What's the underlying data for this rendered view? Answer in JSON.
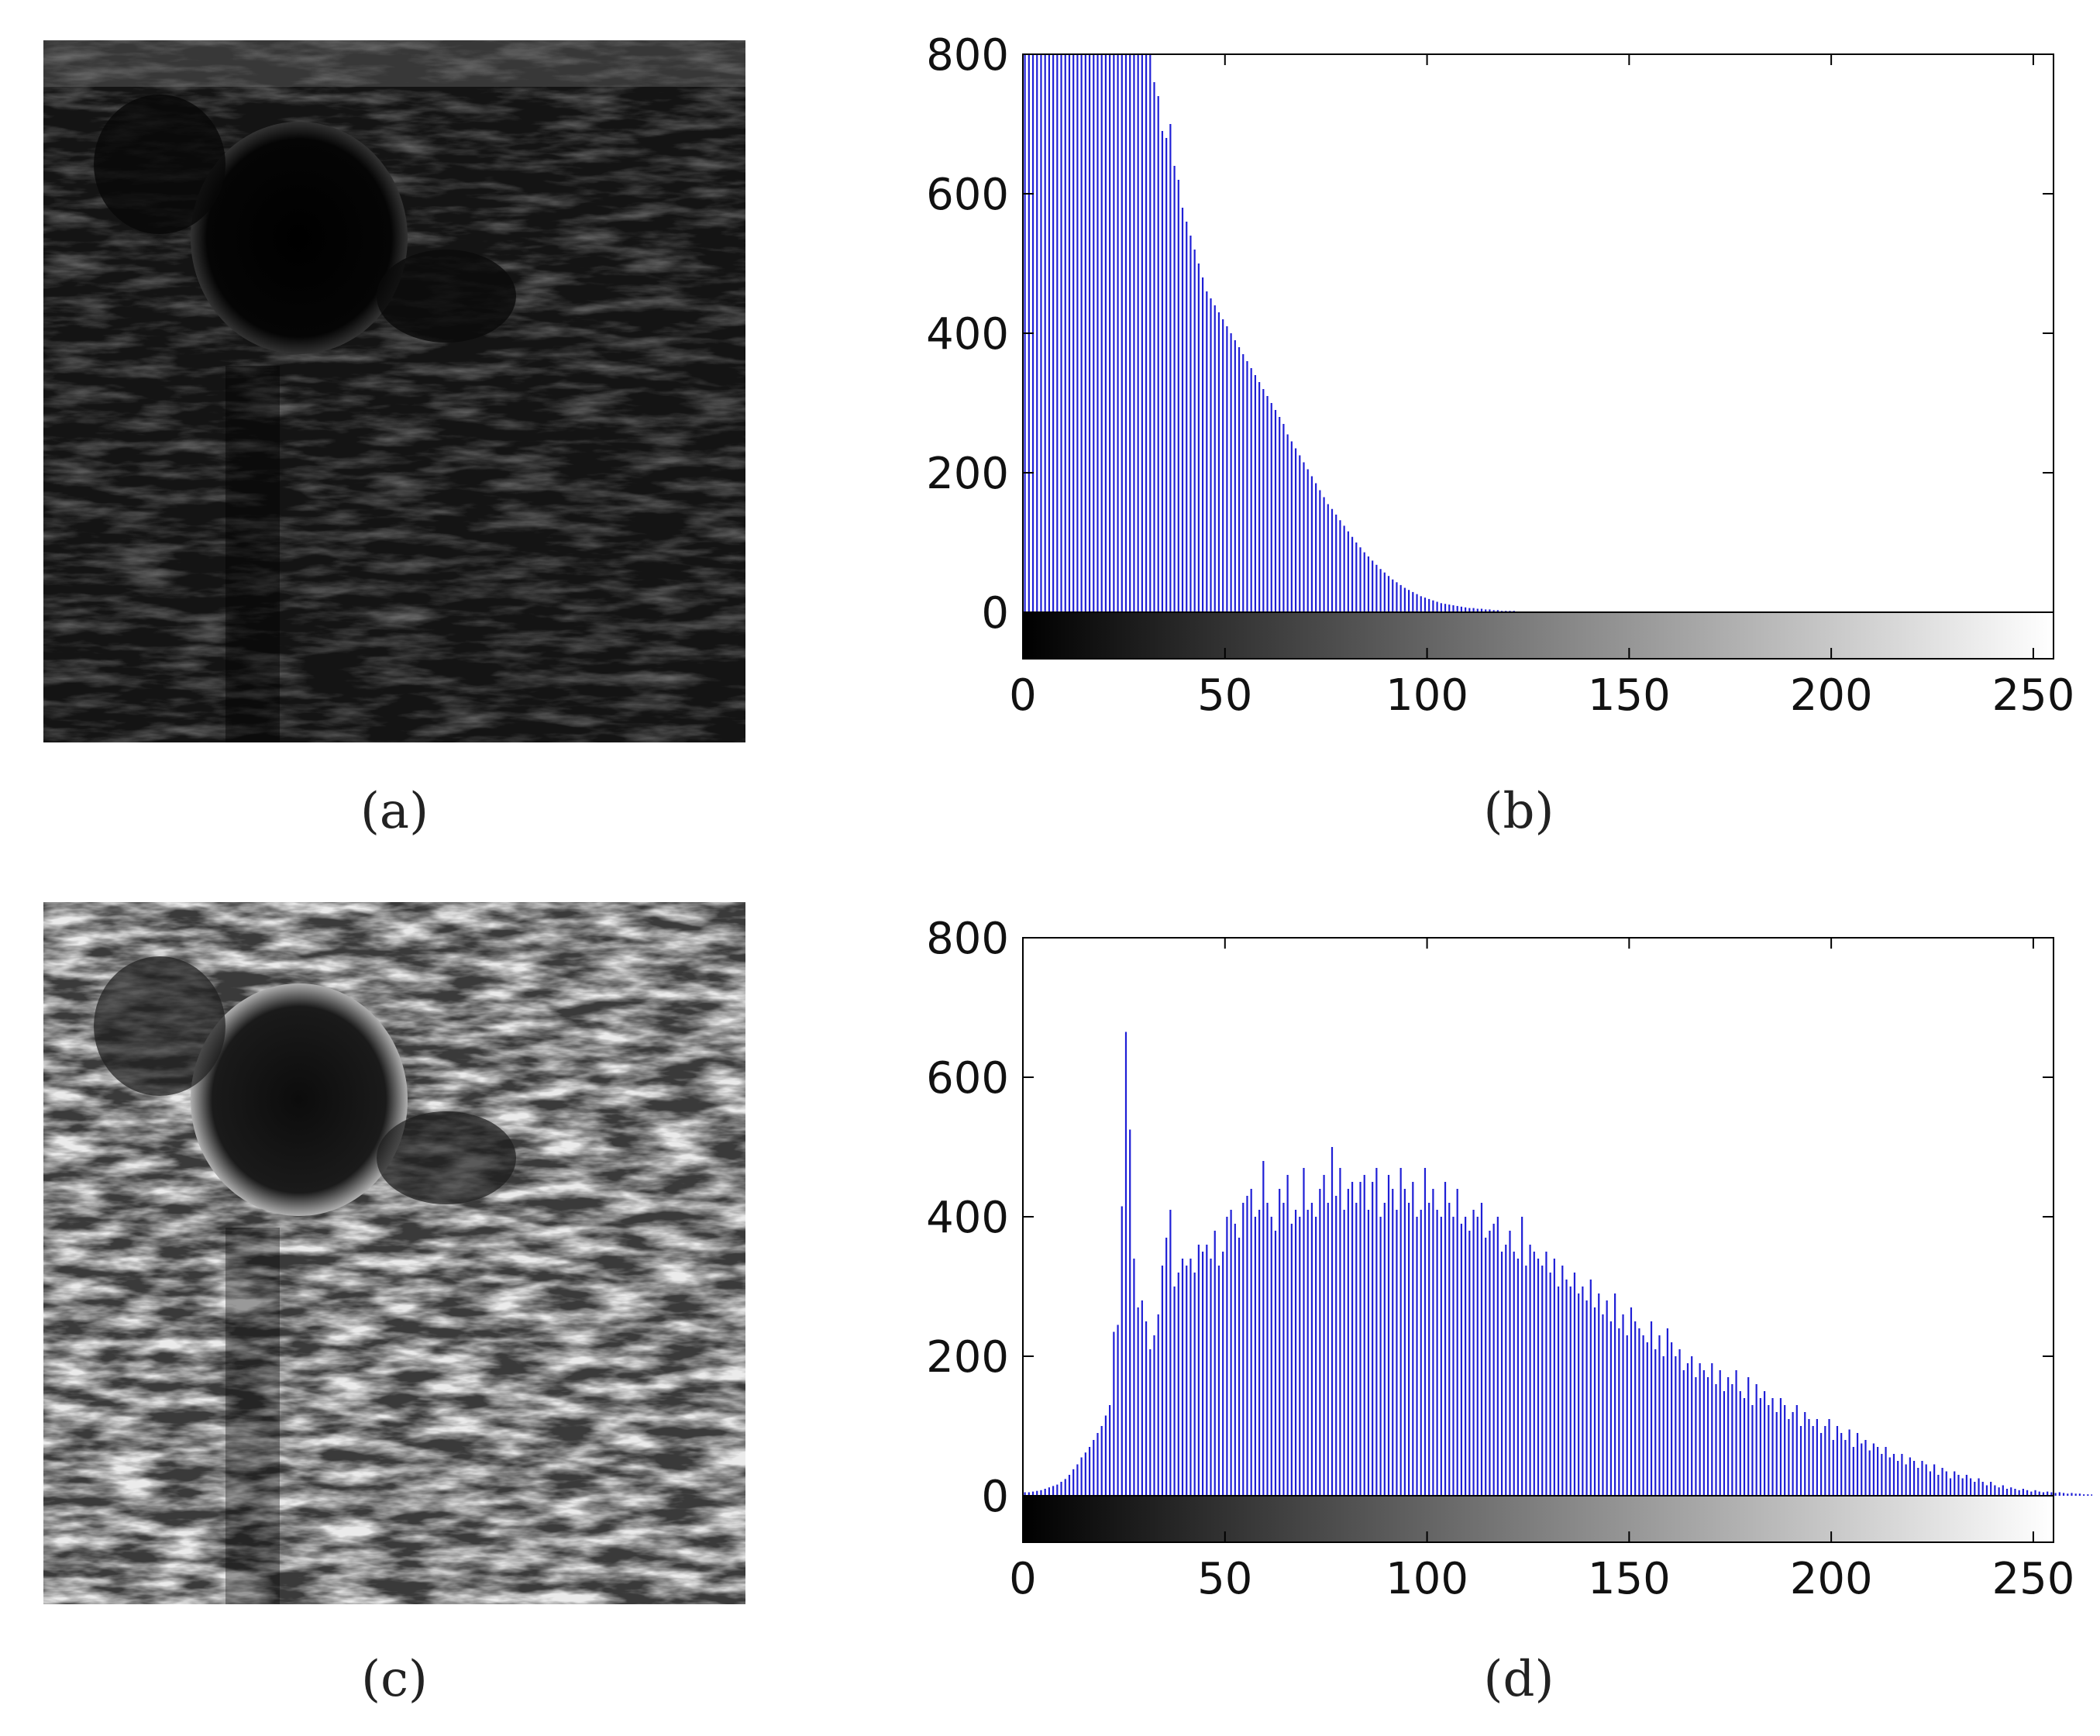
{
  "panels": {
    "a": {
      "caption": "(a)"
    },
    "b": {
      "caption": "(b)"
    },
    "c": {
      "caption": "(c)"
    },
    "d": {
      "caption": "(d)"
    }
  },
  "colors": {
    "bar": "#1f1fd6",
    "axis": "#000000"
  },
  "chart_data": [
    {
      "panel": "b",
      "type": "bar",
      "title": "",
      "xlabel": "",
      "ylabel": "",
      "xlim": [
        0,
        255
      ],
      "ylim": [
        0,
        800
      ],
      "xticks": [
        0,
        50,
        100,
        150,
        200,
        250
      ],
      "yticks": [
        0,
        200,
        400,
        600,
        800
      ],
      "colorbar": "grayscale",
      "x_start": 0,
      "values": [
        800,
        800,
        800,
        800,
        800,
        800,
        800,
        800,
        800,
        800,
        800,
        800,
        800,
        800,
        800,
        800,
        800,
        800,
        800,
        800,
        800,
        800,
        800,
        800,
        800,
        800,
        800,
        800,
        800,
        800,
        800,
        800,
        760,
        740,
        690,
        680,
        700,
        640,
        620,
        580,
        560,
        540,
        520,
        500,
        480,
        460,
        450,
        440,
        430,
        420,
        410,
        400,
        390,
        380,
        370,
        360,
        350,
        340,
        330,
        320,
        310,
        300,
        290,
        280,
        270,
        255,
        245,
        235,
        225,
        215,
        205,
        195,
        185,
        175,
        165,
        155,
        148,
        140,
        132,
        124,
        116,
        108,
        100,
        93,
        86,
        80,
        74,
        68,
        62,
        57,
        52,
        47,
        43,
        39,
        35,
        32,
        29,
        26,
        23,
        21,
        19,
        17,
        15,
        13,
        12,
        11,
        10,
        9,
        8,
        7,
        6,
        6,
        5,
        5,
        4,
        4,
        3,
        3,
        2,
        2,
        2,
        2,
        1,
        1,
        1,
        1,
        1,
        1,
        1,
        1,
        1,
        1,
        1,
        1,
        1,
        1,
        1,
        1,
        1,
        1,
        1,
        1,
        0,
        0,
        0,
        0,
        0,
        0,
        0,
        0,
        0,
        0,
        0,
        0,
        0,
        0,
        0,
        0,
        0,
        0,
        0,
        0,
        0,
        0,
        0,
        0,
        0,
        0,
        0,
        0,
        0,
        0,
        0,
        0,
        0,
        0,
        0,
        0,
        0,
        0,
        0,
        0,
        0,
        0,
        0,
        0,
        0,
        0,
        0,
        0,
        0,
        0,
        0,
        0,
        0,
        0,
        0,
        0,
        0,
        0,
        0,
        0,
        0,
        0,
        0,
        0,
        0,
        0,
        0,
        0,
        0,
        0,
        0,
        0,
        0,
        0,
        0,
        0,
        0,
        0,
        0,
        0,
        0,
        0,
        0,
        0,
        0,
        0,
        0,
        0,
        0,
        0,
        0,
        0,
        0,
        0,
        0,
        0,
        0,
        0,
        0,
        0,
        0,
        0,
        0,
        0,
        0,
        0,
        0,
        0,
        0,
        0,
        0,
        0,
        0,
        0,
        0,
        0,
        0,
        0,
        0,
        0,
        0,
        0,
        0,
        0,
        0,
        0
      ]
    },
    {
      "panel": "d",
      "type": "bar",
      "title": "",
      "xlabel": "",
      "ylabel": "",
      "xlim": [
        0,
        255
      ],
      "ylim": [
        0,
        800
      ],
      "xticks": [
        0,
        50,
        100,
        150,
        200,
        250
      ],
      "yticks": [
        0,
        200,
        400,
        600,
        800
      ],
      "colorbar": "grayscale",
      "x_start": 0,
      "values": [
        5,
        5,
        6,
        7,
        8,
        10,
        12,
        14,
        16,
        20,
        24,
        30,
        38,
        45,
        55,
        62,
        70,
        80,
        90,
        100,
        115,
        130,
        235,
        245,
        415,
        665,
        525,
        340,
        270,
        280,
        250,
        210,
        230,
        260,
        330,
        370,
        410,
        300,
        320,
        340,
        330,
        340,
        320,
        360,
        350,
        360,
        340,
        380,
        330,
        350,
        400,
        410,
        390,
        370,
        420,
        430,
        440,
        400,
        410,
        480,
        420,
        400,
        380,
        440,
        420,
        460,
        390,
        410,
        400,
        470,
        410,
        420,
        400,
        440,
        460,
        420,
        500,
        430,
        470,
        410,
        440,
        450,
        420,
        450,
        460,
        410,
        450,
        470,
        400,
        420,
        460,
        440,
        410,
        470,
        440,
        420,
        450,
        400,
        410,
        470,
        420,
        440,
        410,
        400,
        450,
        420,
        400,
        440,
        390,
        400,
        380,
        410,
        400,
        420,
        370,
        380,
        390,
        400,
        350,
        360,
        380,
        350,
        340,
        400,
        330,
        360,
        350,
        340,
        330,
        350,
        320,
        340,
        300,
        330,
        310,
        300,
        320,
        290,
        300,
        280,
        310,
        270,
        290,
        260,
        280,
        250,
        290,
        240,
        260,
        230,
        270,
        250,
        240,
        230,
        220,
        250,
        210,
        230,
        200,
        240,
        220,
        200,
        210,
        180,
        190,
        200,
        170,
        190,
        180,
        170,
        190,
        160,
        180,
        150,
        170,
        160,
        180,
        150,
        140,
        170,
        130,
        160,
        140,
        150,
        130,
        140,
        120,
        140,
        130,
        110,
        120,
        130,
        100,
        120,
        110,
        100,
        110,
        90,
        100,
        110,
        80,
        100,
        90,
        80,
        95,
        70,
        90,
        75,
        80,
        65,
        75,
        70,
        60,
        70,
        55,
        60,
        50,
        60,
        45,
        55,
        50,
        40,
        50,
        45,
        35,
        45,
        30,
        40,
        35,
        25,
        35,
        30,
        25,
        30,
        25,
        20,
        25,
        20,
        15,
        20,
        15,
        12,
        15,
        10,
        12,
        10,
        8,
        10,
        8,
        6,
        8,
        6,
        5,
        6,
        5,
        4,
        5,
        4,
        3,
        4,
        3,
        3,
        2,
        2,
        2,
        1
      ]
    }
  ]
}
